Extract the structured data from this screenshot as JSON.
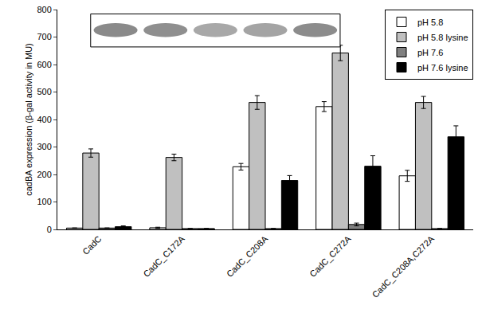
{
  "chart_data": {
    "type": "bar",
    "y_label": "cadBA expression (β-gal activity in MU)",
    "categories": [
      "CadC",
      "CadC_C172A",
      "CadC_C208A",
      "CadC_C272A",
      "CadC_C208A,C272A"
    ],
    "series": [
      {
        "name": "pH 5.8",
        "color": "#ffffff",
        "values": [
          5,
          6,
          228,
          447,
          195
        ],
        "errors": [
          0,
          2,
          12,
          18,
          20
        ]
      },
      {
        "name": "pH 5.8 lysine",
        "color": "#c0c0c0",
        "values": [
          278,
          262,
          462,
          642,
          462
        ],
        "errors": [
          15,
          12,
          25,
          28,
          22
        ]
      },
      {
        "name": "pH 7.6",
        "color": "#808080",
        "values": [
          5,
          3,
          3,
          18,
          3
        ],
        "errors": [
          0,
          0,
          0,
          5,
          0
        ]
      },
      {
        "name": "pH 7.6 lysine",
        "color": "#000000",
        "values": [
          10,
          3,
          178,
          230,
          337
        ],
        "errors": [
          3,
          0,
          18,
          38,
          40
        ]
      }
    ],
    "ylim": [
      0,
      800
    ],
    "yticks": [
      0,
      100,
      200,
      300,
      400,
      500,
      600,
      700,
      800
    ],
    "grid": false,
    "legend": "top-right"
  }
}
